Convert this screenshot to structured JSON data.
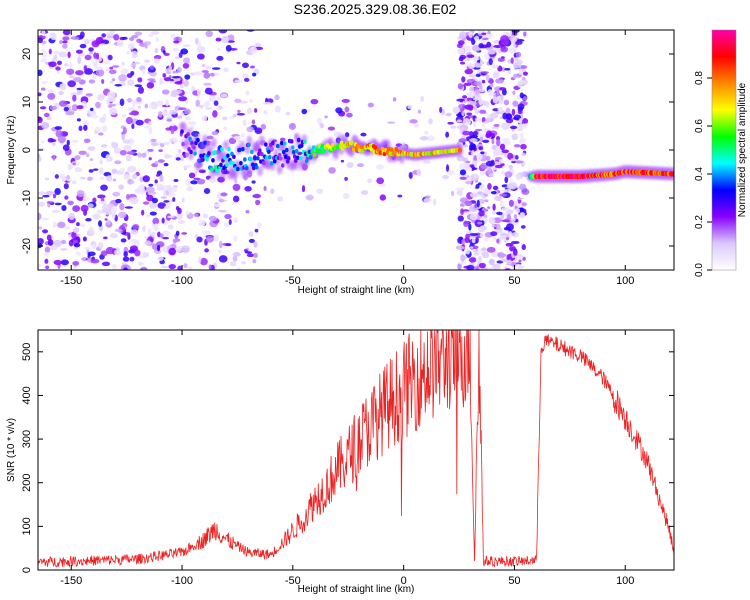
{
  "title": "S236.2025.329.08.36.E02",
  "chart_data": [
    {
      "type": "heatmap",
      "xlabel": "Height of straight line (km)",
      "ylabel": "Frequency (Hz)",
      "xlim": [
        -165,
        122
      ],
      "ylim": [
        -25,
        25
      ],
      "xticks": [
        -150,
        -100,
        -50,
        0,
        50,
        100
      ],
      "yticks": [
        -20,
        -10,
        0,
        10,
        20
      ],
      "colorbar": {
        "label": "Normalized spectral amplitude",
        "range": [
          0,
          1
        ],
        "ticks": [
          0.0,
          0.2,
          0.4,
          0.6,
          0.8
        ],
        "colors": [
          "#ffffff",
          "#dcc8ff",
          "#8800ff",
          "#0000ff",
          "#00ffff",
          "#00ff00",
          "#ffff00",
          "#ff8800",
          "#ff0000",
          "#ff00aa"
        ]
      },
      "ridge": [
        {
          "x": -100,
          "f": 1.5,
          "amp": 0.25
        },
        {
          "x": -85,
          "f": -2.0,
          "amp": 0.4
        },
        {
          "x": -60,
          "f": -1.0,
          "amp": 0.3
        },
        {
          "x": -50,
          "f": -0.5,
          "amp": 0.3
        },
        {
          "x": -40,
          "f": 0.0,
          "amp": 0.5
        },
        {
          "x": -25,
          "f": 1.0,
          "amp": 0.7
        },
        {
          "x": -10,
          "f": 0.0,
          "amp": 0.75
        },
        {
          "x": 5,
          "f": -1.0,
          "amp": 0.7
        },
        {
          "x": 25,
          "f": 0.0,
          "amp": 0.7
        },
        {
          "x": 57,
          "f": -5.5,
          "amp": 0.3
        },
        {
          "x": 60,
          "f": -5.5,
          "amp": 0.9
        },
        {
          "x": 80,
          "f": -5.5,
          "amp": 0.9
        },
        {
          "x": 95,
          "f": -5.0,
          "amp": 0.8
        },
        {
          "x": 100,
          "f": -4.5,
          "amp": 0.85
        },
        {
          "x": 122,
          "f": -5.0,
          "amp": 0.85
        }
      ],
      "noise_regions": [
        {
          "x": [
            -165,
            -100
          ],
          "density": "high"
        },
        {
          "x": [
            -100,
            -65
          ],
          "density": "medium"
        },
        {
          "x": [
            -65,
            25
          ],
          "density": "low"
        },
        {
          "x": [
            25,
            55
          ],
          "density": "high"
        }
      ]
    },
    {
      "type": "line",
      "xlabel": "Height of straight line (km)",
      "ylabel": "SNR (10 * v/v)",
      "xlim": [
        -165,
        122
      ],
      "ylim": [
        0,
        550
      ],
      "xticks": [
        -150,
        -100,
        -50,
        0,
        50,
        100
      ],
      "yticks": [
        0,
        100,
        200,
        300,
        400,
        500
      ],
      "series": [
        {
          "name": "SNR",
          "color": "#ee2222",
          "x": [
            -165,
            -150,
            -120,
            -100,
            -90,
            -85,
            -80,
            -70,
            -60,
            -55,
            -50,
            -45,
            -40,
            -35,
            -30,
            -25,
            -20,
            -15,
            -10,
            -5,
            0,
            5,
            10,
            15,
            20,
            25,
            30,
            32,
            34,
            36,
            40,
            50,
            55,
            60,
            62,
            64,
            70,
            80,
            90,
            100,
            110,
            115,
            120,
            122
          ],
          "y": [
            18,
            20,
            25,
            40,
            70,
            95,
            70,
            40,
            35,
            60,
            90,
            120,
            160,
            190,
            230,
            260,
            300,
            330,
            360,
            390,
            410,
            440,
            460,
            480,
            495,
            505,
            510,
            20,
            520,
            20,
            20,
            20,
            20,
            25,
            510,
            525,
            515,
            490,
            440,
            350,
            250,
            170,
            90,
            40
          ]
        }
      ]
    }
  ]
}
